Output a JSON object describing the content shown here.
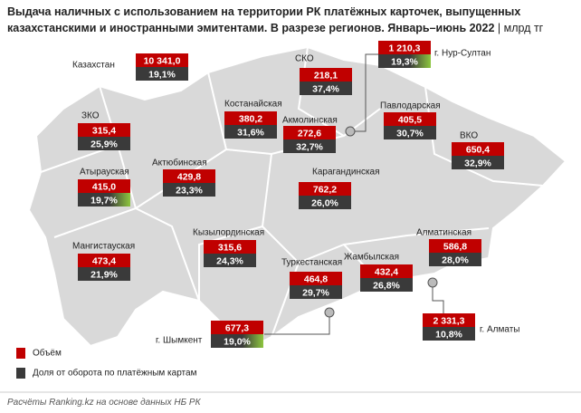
{
  "title": "Выдача наличных с использованием на территории РК платёжных карточек, выпущенных казахстанскими и иностранными эмитентами. В разрезе регионов. Январь–июнь 2022",
  "unit": "| млрд тг",
  "regions": [
    {
      "name": "Казахстан",
      "volume": "10 341,0",
      "share": "19,1%"
    },
    {
      "name": "СКО",
      "volume": "218,1",
      "share": "37,4%"
    },
    {
      "name": "г. Нур-Султан",
      "volume": "1 210,3",
      "share": "19,3%"
    },
    {
      "name": "Костанайская",
      "volume": "380,2",
      "share": "31,6%"
    },
    {
      "name": "Акмолинская",
      "volume": "272,6",
      "share": "32,7%"
    },
    {
      "name": "Павлодарская",
      "volume": "405,5",
      "share": "30,7%"
    },
    {
      "name": "ЗКО",
      "volume": "315,4",
      "share": "25,9%"
    },
    {
      "name": "ВКО",
      "volume": "650,4",
      "share": "32,9%"
    },
    {
      "name": "Атырауская",
      "volume": "415,0",
      "share": "19,7%"
    },
    {
      "name": "Актюбинская",
      "volume": "429,8",
      "share": "23,3%"
    },
    {
      "name": "Карагандинская",
      "volume": "762,2",
      "share": "26,0%"
    },
    {
      "name": "Алматинская",
      "volume": "586,8",
      "share": "28,0%"
    },
    {
      "name": "Кызылординская",
      "volume": "315,6",
      "share": "24,3%"
    },
    {
      "name": "Мангистауская",
      "volume": "473,4",
      "share": "21,9%"
    },
    {
      "name": "Туркестанская",
      "volume": "464,8",
      "share": "29,7%"
    },
    {
      "name": "Жамбылская",
      "volume": "432,4",
      "share": "26,8%"
    },
    {
      "name": "г. Алматы",
      "volume": "2 331,3",
      "share": "10,8%"
    },
    {
      "name": "г. Шымкент",
      "volume": "677,3",
      "share": "19,0%"
    }
  ],
  "legend": {
    "volume": "Объём",
    "share": "Доля от оборота по платёжным картам"
  },
  "source": "Расчёты Ranking.kz на основе данных НБ РК"
}
